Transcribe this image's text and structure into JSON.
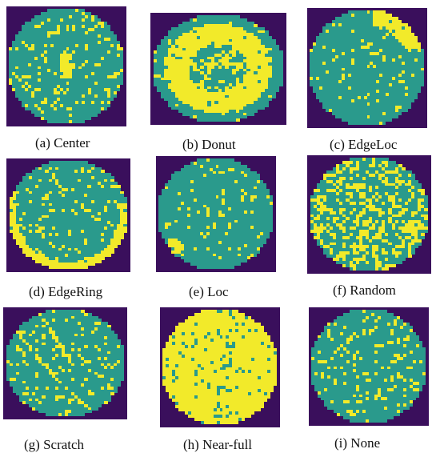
{
  "figure": {
    "colors": {
      "background": "#3a0f5c",
      "wafer_normal": "#2a9a8c",
      "defect": "#f2ea2a",
      "page": "#ffffff"
    },
    "panels": [
      {
        "id": "a",
        "caption": "(a) Center",
        "pattern": "center"
      },
      {
        "id": "b",
        "caption": "(b) Donut",
        "pattern": "donut"
      },
      {
        "id": "c",
        "caption": "(c) EdgeLoc",
        "pattern": "edgeloc"
      },
      {
        "id": "d",
        "caption": "(d) EdgeRing",
        "pattern": "edgering"
      },
      {
        "id": "e",
        "caption": "(e) Loc",
        "pattern": "loc"
      },
      {
        "id": "f",
        "caption": "(f) Random",
        "pattern": "random"
      },
      {
        "id": "g",
        "caption": "(g) Scratch",
        "pattern": "scratch"
      },
      {
        "id": "h",
        "caption": "(h) Near-full",
        "pattern": "nearfull"
      },
      {
        "id": "i",
        "caption": "(i) None",
        "pattern": "none"
      }
    ]
  }
}
